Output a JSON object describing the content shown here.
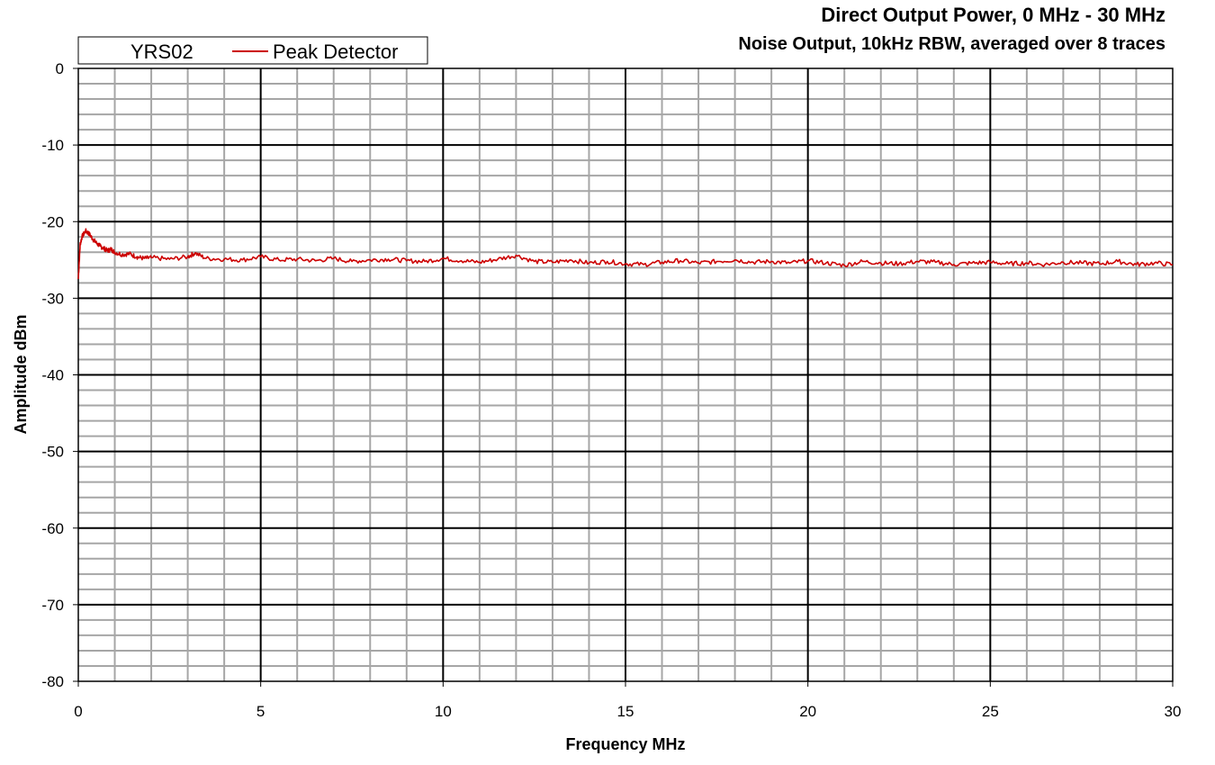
{
  "chart_data": {
    "type": "line",
    "title": "Direct Output Power, 0 MHz - 30 MHz",
    "subtitle": "Noise Output, 10kHz RBW, averaged over 8 traces",
    "xlabel": "Frequency MHz",
    "ylabel": "Amplitude dBm",
    "xlim": [
      0,
      30
    ],
    "ylim": [
      -80,
      0
    ],
    "x_ticks": [
      "0",
      "5",
      "10",
      "15",
      "20",
      "25",
      "30"
    ],
    "y_ticks": [
      "0",
      "-10",
      "-20",
      "-30",
      "-40",
      "-50",
      "-60",
      "-70",
      "-80"
    ],
    "grid": true,
    "legend_position": "top-left",
    "legend": {
      "title": "YRS02",
      "entries": [
        "Peak Detector"
      ]
    },
    "series": [
      {
        "name": "Peak Detector",
        "color": "#cc0000",
        "x": [
          0,
          0.05,
          0.1,
          0.2,
          0.3,
          0.4,
          0.5,
          0.6,
          0.7,
          0.8,
          0.9,
          1.0,
          1.2,
          1.4,
          1.6,
          1.8,
          2.0,
          2.5,
          3.0,
          3.2,
          3.5,
          4.0,
          4.5,
          5.0,
          5.5,
          6.0,
          6.5,
          7.0,
          7.5,
          8.0,
          8.5,
          9.0,
          9.5,
          10.0,
          10.5,
          11.0,
          11.5,
          12.0,
          12.5,
          13.0,
          13.5,
          14.0,
          14.5,
          15.0,
          15.5,
          16.0,
          16.5,
          17.0,
          17.5,
          18.0,
          18.5,
          19.0,
          19.5,
          20.0,
          20.5,
          21.0,
          21.5,
          22.0,
          22.5,
          23.0,
          23.5,
          24.0,
          24.5,
          25.0,
          25.5,
          26.0,
          26.5,
          27.0,
          27.5,
          28.0,
          28.5,
          29.0,
          29.5,
          30.0
        ],
        "y": [
          -27.5,
          -23.0,
          -22.0,
          -21.2,
          -21.6,
          -22.3,
          -22.8,
          -23.2,
          -23.5,
          -23.8,
          -23.6,
          -24.0,
          -24.3,
          -24.2,
          -24.6,
          -24.8,
          -24.7,
          -24.9,
          -24.6,
          -24.1,
          -24.8,
          -24.9,
          -25.0,
          -24.6,
          -25.0,
          -24.9,
          -25.1,
          -24.8,
          -25.2,
          -25.0,
          -24.9,
          -25.1,
          -25.2,
          -24.8,
          -25.1,
          -25.3,
          -24.9,
          -24.4,
          -25.2,
          -25.3,
          -25.0,
          -25.4,
          -25.2,
          -25.5,
          -25.6,
          -25.3,
          -25.1,
          -25.4,
          -25.2,
          -25.0,
          -25.3,
          -25.2,
          -25.4,
          -25.1,
          -25.4,
          -25.7,
          -25.2,
          -25.4,
          -25.5,
          -25.2,
          -25.3,
          -25.6,
          -25.4,
          -25.3,
          -25.5,
          -25.4,
          -25.6,
          -25.3,
          -25.4,
          -25.5,
          -25.2,
          -25.6,
          -25.4,
          -25.6
        ]
      }
    ]
  }
}
